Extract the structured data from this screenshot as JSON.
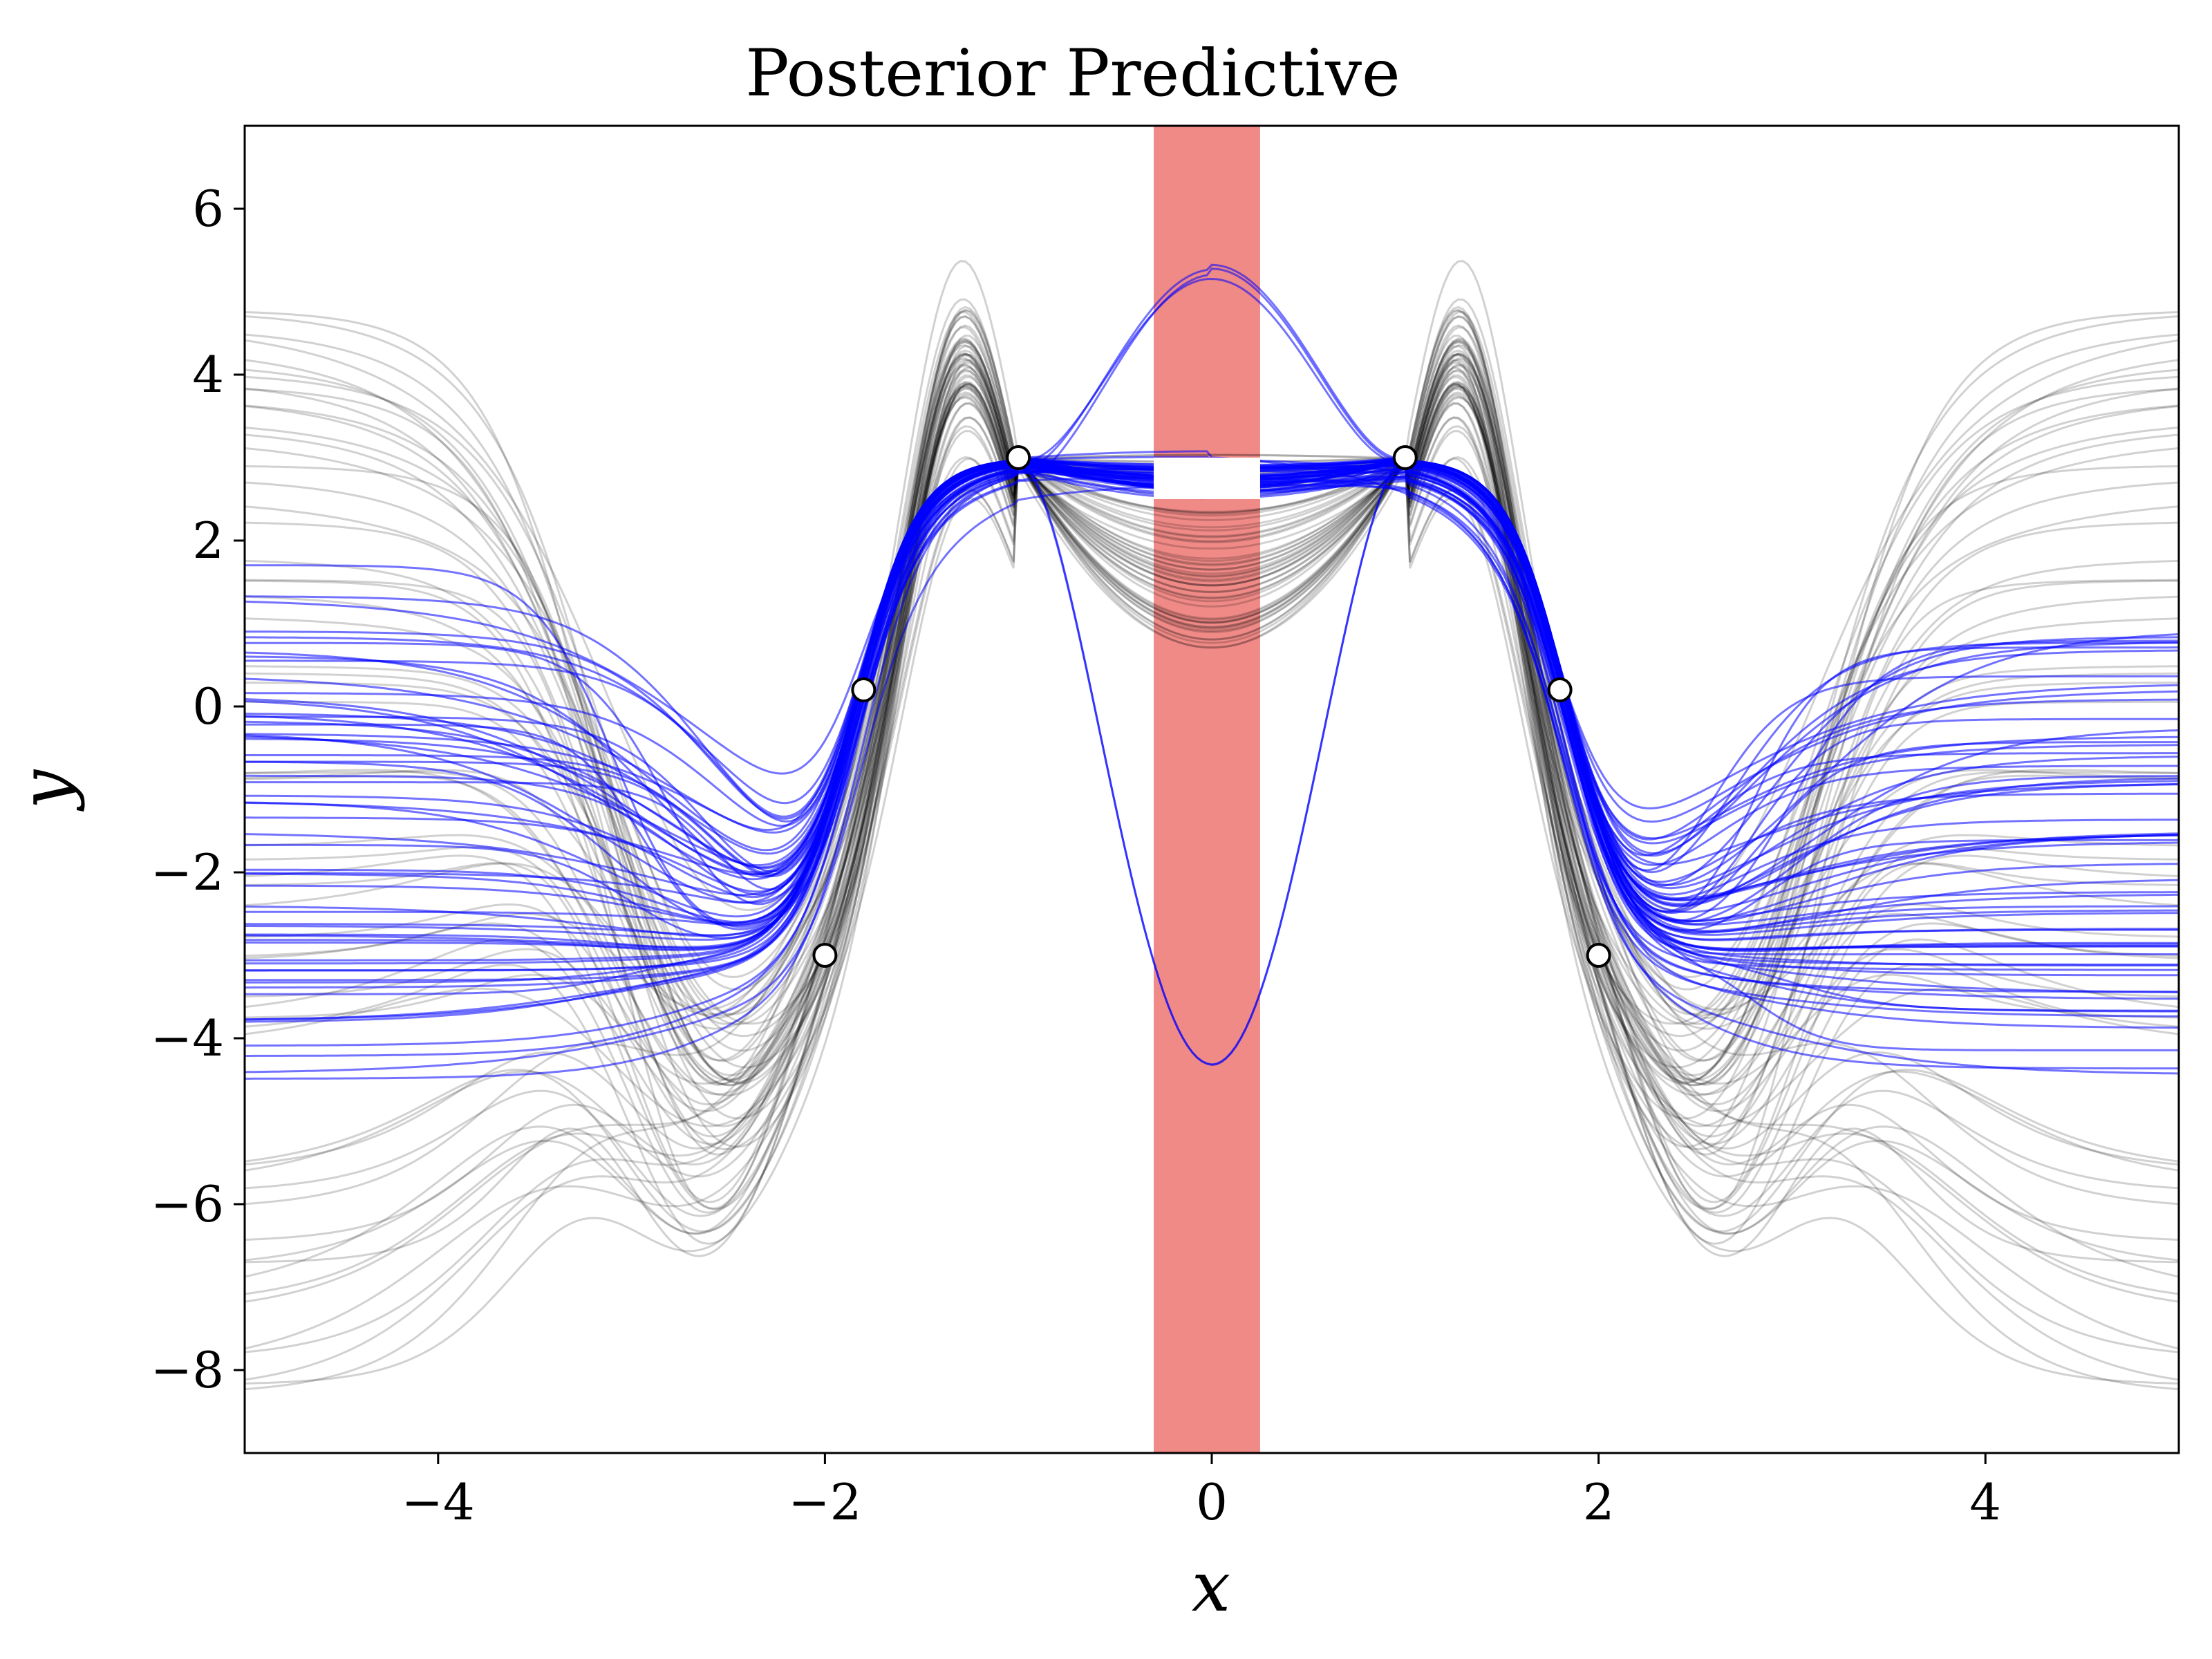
{
  "chart_data": {
    "type": "line",
    "title": "Posterior Predictive",
    "xlabel": "x",
    "ylabel": "y",
    "xlim": [
      -5,
      5
    ],
    "ylim": [
      -9,
      7
    ],
    "xticks": [
      -4,
      -2,
      0,
      2,
      4
    ],
    "yticks": [
      -8,
      -6,
      -4,
      -2,
      0,
      2,
      4,
      6
    ],
    "xtick_labels": [
      "−4",
      "−2",
      "0",
      "2",
      "4"
    ],
    "ytick_labels": [
      "−8",
      "−6",
      "−4",
      "−2",
      "0",
      "2",
      "4",
      "6"
    ],
    "grid": false,
    "legend": "none",
    "shaded_region": {
      "x": [
        -0.3,
        0.25
      ],
      "color": "#f08a87",
      "y_gap": [
        2.5,
        3.0
      ]
    },
    "observations": [
      {
        "x": -2.0,
        "y": -3.0
      },
      {
        "x": -1.8,
        "y": 0.2
      },
      {
        "x": -1.0,
        "y": 3.0
      },
      {
        "x": 1.0,
        "y": 3.0
      },
      {
        "x": 1.8,
        "y": 0.2
      },
      {
        "x": 2.0,
        "y": -3.0
      }
    ],
    "series": [
      {
        "color": "#000000",
        "opacity": 0.18,
        "sample_count": 60,
        "summary": "samples peaking near 5 at x=±1.3, troughs near -6 at x=±2.6, tails -5 to 2"
      },
      {
        "color": "#0000ff",
        "opacity": 0.55,
        "sample_count": 60,
        "summary": "samples around 3 in the center, steep drop at x=±1.8, flat tails -4.5 to 1.5"
      }
    ]
  }
}
